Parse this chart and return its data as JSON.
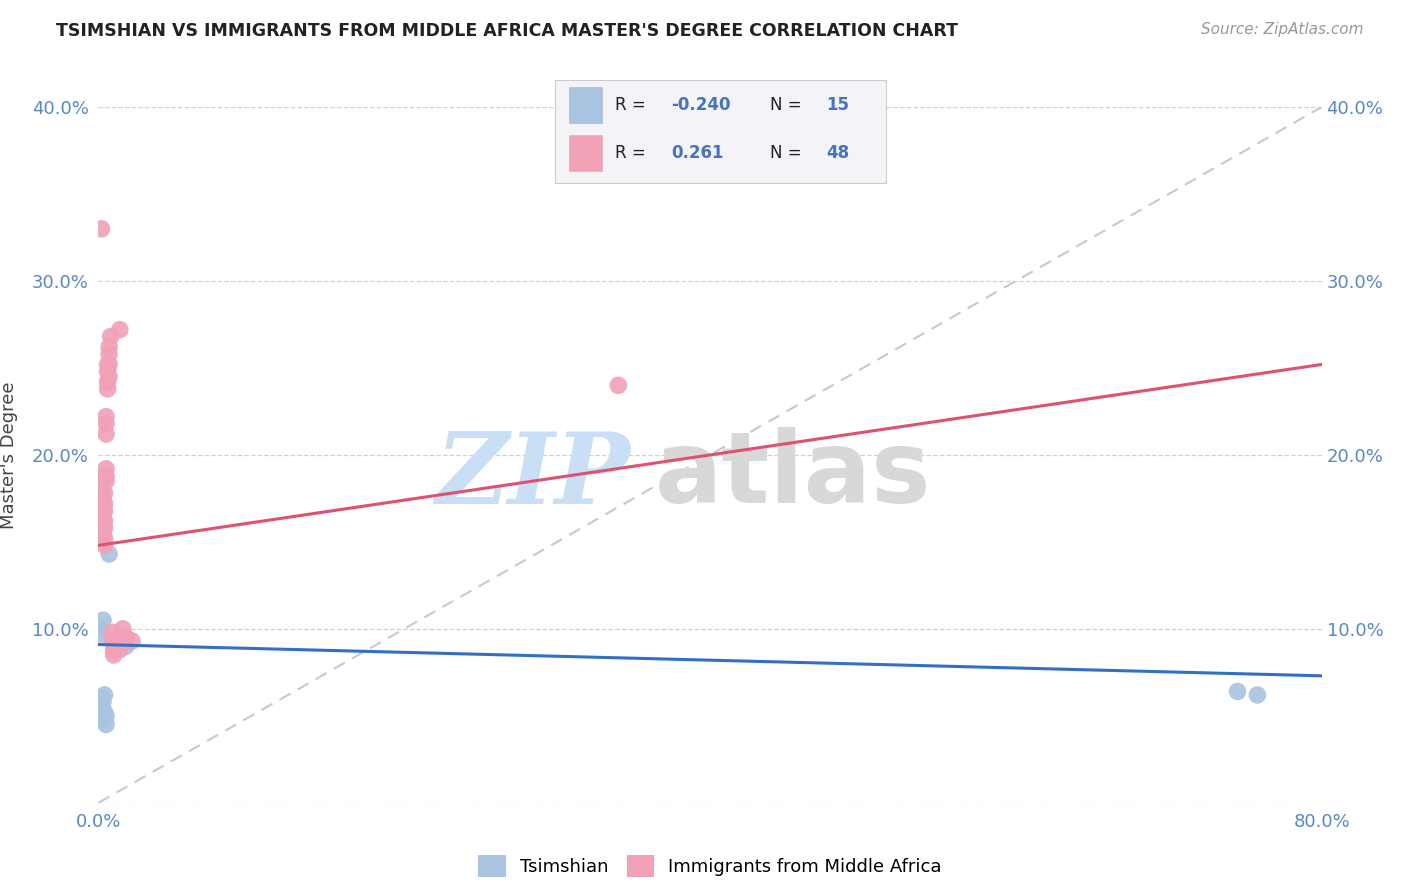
{
  "title": "TSIMSHIAN VS IMMIGRANTS FROM MIDDLE AFRICA MASTER'S DEGREE CORRELATION CHART",
  "source": "Source: ZipAtlas.com",
  "ylabel": "Master's Degree",
  "xlim": [
    0,
    0.8
  ],
  "ylim": [
    0,
    0.4
  ],
  "tsimshian_color": "#a8c4e0",
  "immigrants_color": "#f2a0b5",
  "line_tsimshian_color": "#3370c4",
  "line_immigrants_color": "#e05070",
  "diagonal_color": "#c8c8d0",
  "tsimshian_scatter": [
    [
      0.001,
      0.186
    ],
    [
      0.002,
      0.1
    ],
    [
      0.002,
      0.097
    ],
    [
      0.002,
      0.06
    ],
    [
      0.003,
      0.105
    ],
    [
      0.003,
      0.058
    ],
    [
      0.004,
      0.062
    ],
    [
      0.004,
      0.052
    ],
    [
      0.004,
      0.048
    ],
    [
      0.005,
      0.05
    ],
    [
      0.005,
      0.045
    ],
    [
      0.007,
      0.143
    ],
    [
      0.018,
      0.09
    ],
    [
      0.745,
      0.064
    ],
    [
      0.758,
      0.062
    ]
  ],
  "immigrants_scatter": [
    [
      0.001,
      0.175
    ],
    [
      0.002,
      0.172
    ],
    [
      0.002,
      0.178
    ],
    [
      0.002,
      0.165
    ],
    [
      0.002,
      0.158
    ],
    [
      0.003,
      0.17
    ],
    [
      0.003,
      0.165
    ],
    [
      0.003,
      0.16
    ],
    [
      0.003,
      0.155
    ],
    [
      0.003,
      0.175
    ],
    [
      0.003,
      0.168
    ],
    [
      0.003,
      0.162
    ],
    [
      0.003,
      0.158
    ],
    [
      0.004,
      0.178
    ],
    [
      0.004,
      0.172
    ],
    [
      0.004,
      0.168
    ],
    [
      0.004,
      0.162
    ],
    [
      0.004,
      0.158
    ],
    [
      0.004,
      0.152
    ],
    [
      0.004,
      0.148
    ],
    [
      0.005,
      0.222
    ],
    [
      0.005,
      0.218
    ],
    [
      0.005,
      0.212
    ],
    [
      0.005,
      0.192
    ],
    [
      0.005,
      0.188
    ],
    [
      0.005,
      0.185
    ],
    [
      0.006,
      0.252
    ],
    [
      0.006,
      0.248
    ],
    [
      0.006,
      0.242
    ],
    [
      0.006,
      0.238
    ],
    [
      0.007,
      0.262
    ],
    [
      0.007,
      0.258
    ],
    [
      0.007,
      0.252
    ],
    [
      0.007,
      0.245
    ],
    [
      0.008,
      0.268
    ],
    [
      0.009,
      0.098
    ],
    [
      0.009,
      0.093
    ],
    [
      0.01,
      0.092
    ],
    [
      0.01,
      0.088
    ],
    [
      0.01,
      0.085
    ],
    [
      0.012,
      0.092
    ],
    [
      0.014,
      0.088
    ],
    [
      0.014,
      0.272
    ],
    [
      0.016,
      0.1
    ],
    [
      0.018,
      0.095
    ],
    [
      0.022,
      0.093
    ],
    [
      0.34,
      0.24
    ],
    [
      0.002,
      0.33
    ]
  ],
  "tsimshian_line": [
    [
      0.0,
      0.091
    ],
    [
      0.8,
      0.073
    ]
  ],
  "immigrants_line": [
    [
      0.0,
      0.148
    ],
    [
      0.8,
      0.252
    ]
  ],
  "legend_items": [
    {
      "color": "#a8c4e0",
      "r": "R = -0.240",
      "n": "N = 15"
    },
    {
      "color": "#f2a0b5",
      "r": "R =  0.261",
      "n": "N = 48"
    }
  ]
}
